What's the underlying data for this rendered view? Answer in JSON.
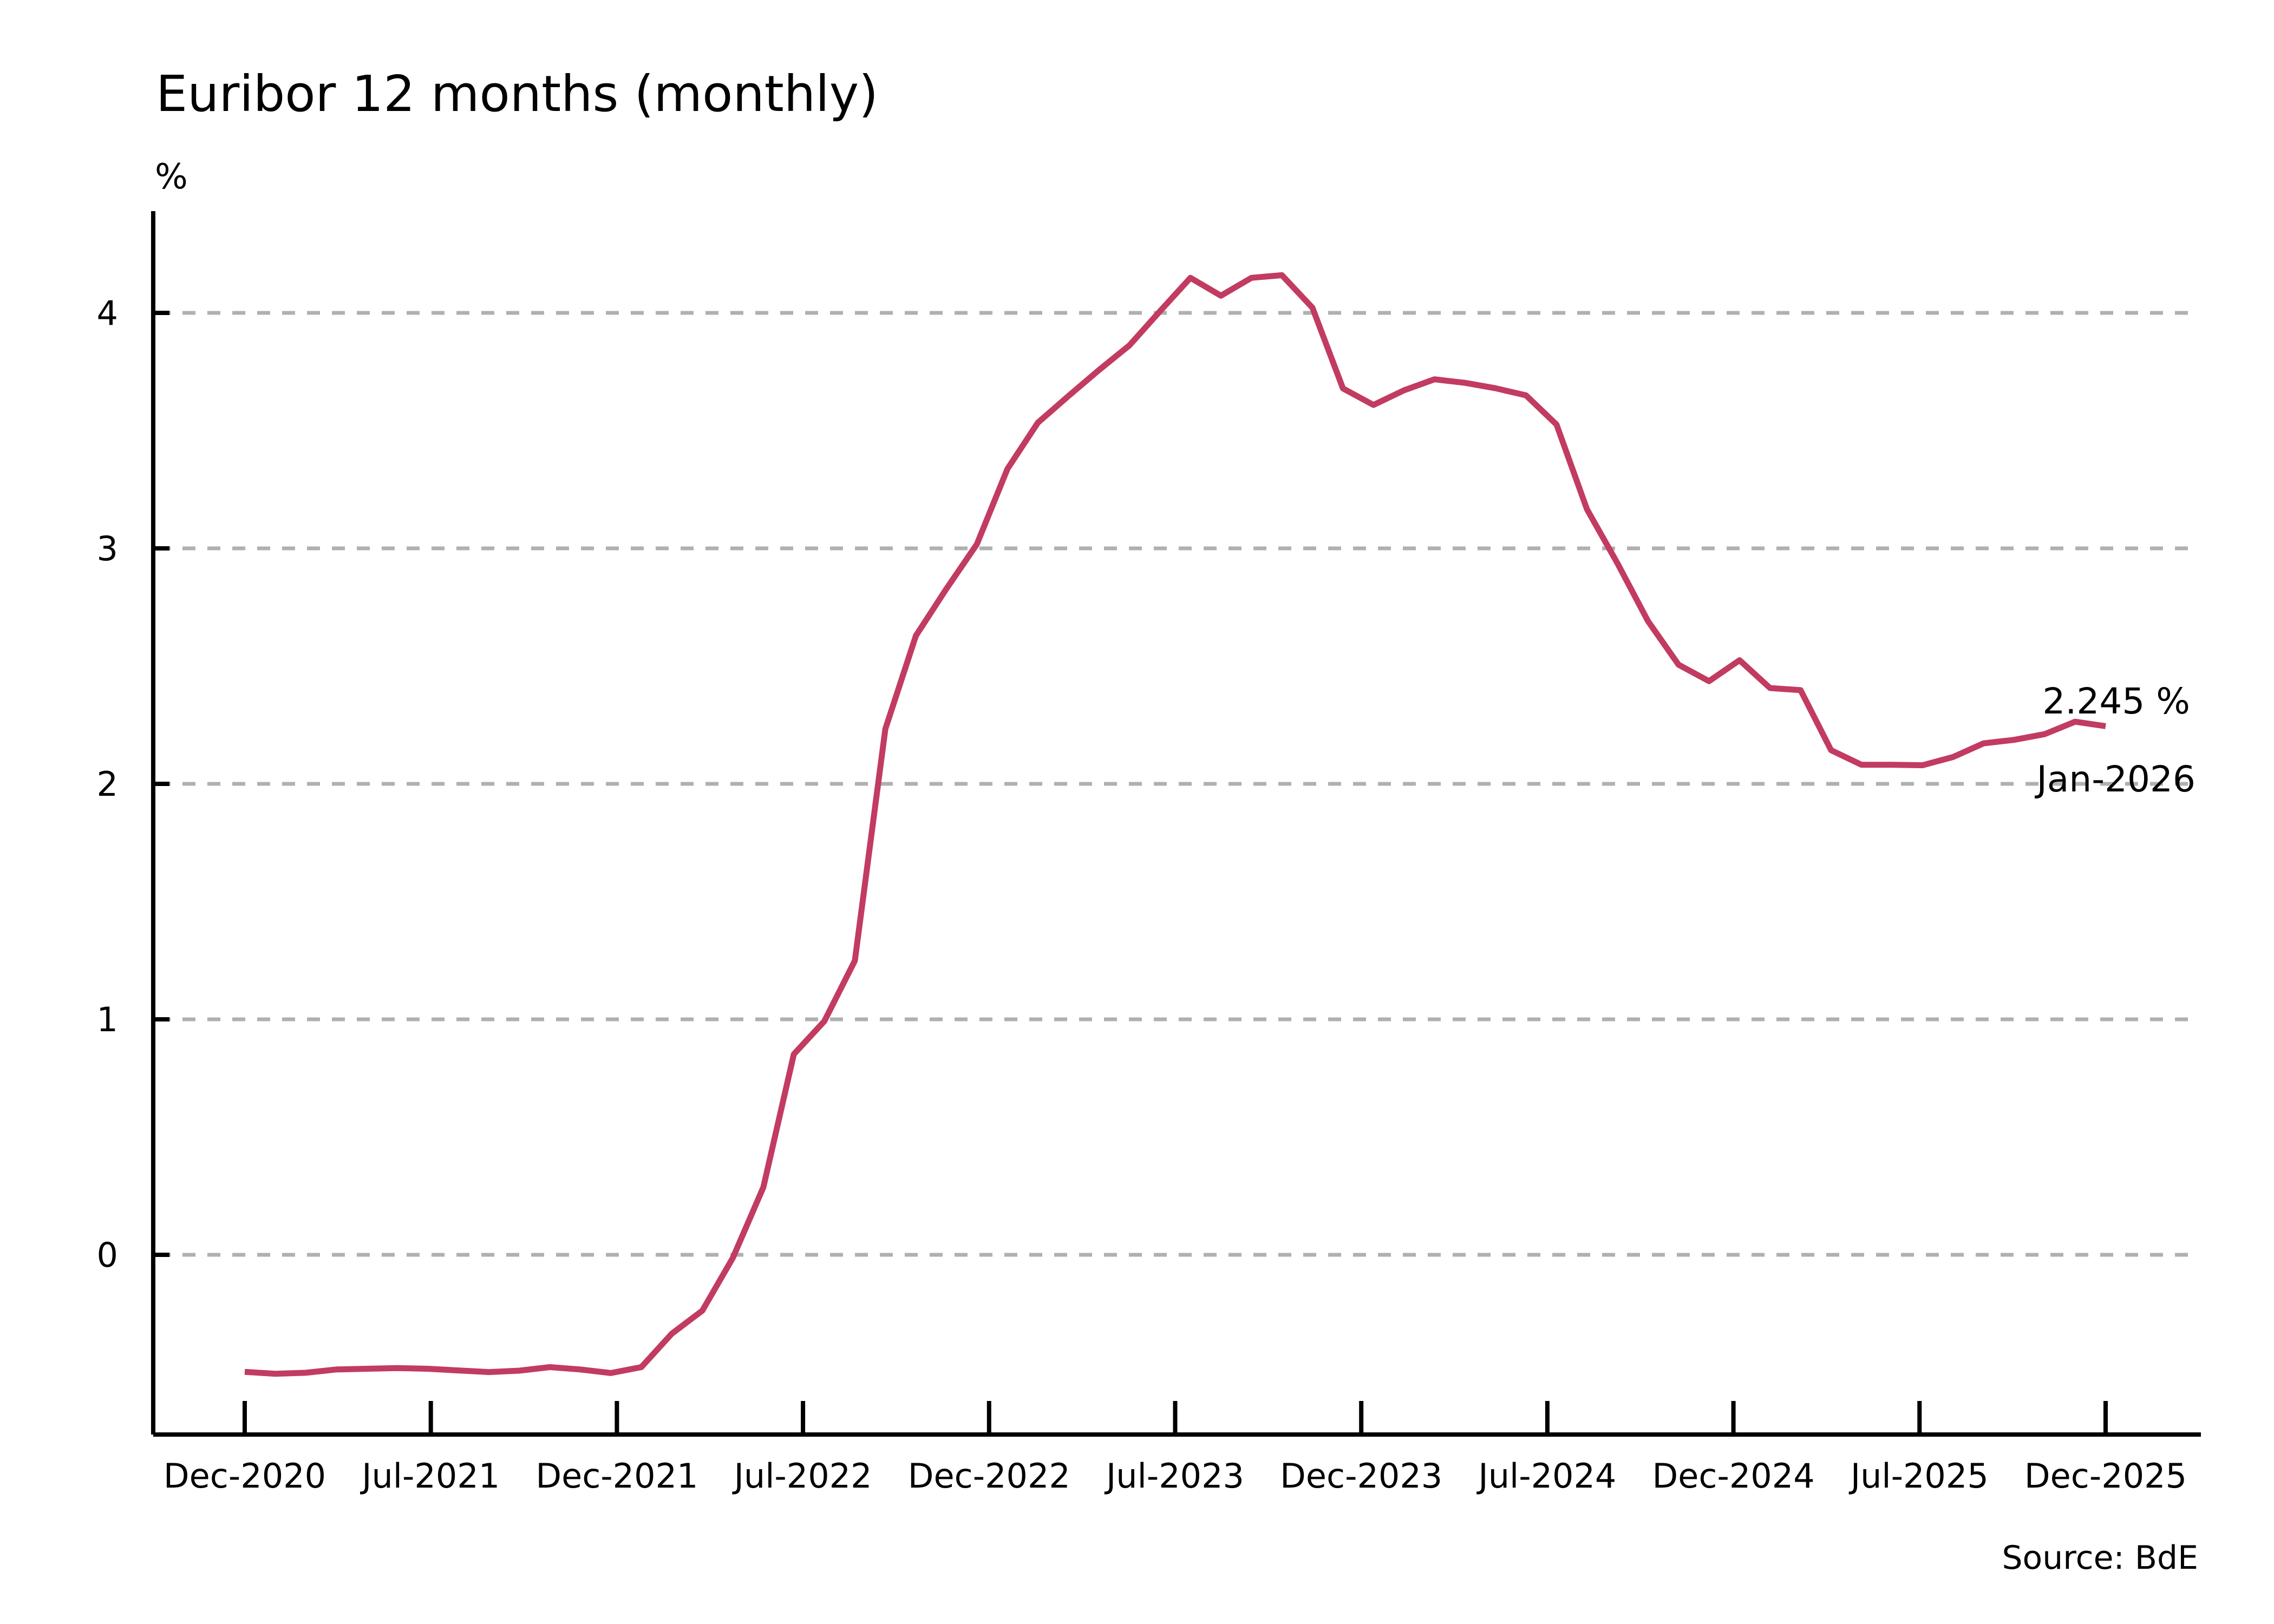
{
  "header": {
    "title": "Euribor 12 months (monthly)"
  },
  "axes": {
    "y_unit": "%"
  },
  "annotation": {
    "value_label": "2.245 %",
    "date_label": "Jan-2026"
  },
  "source_note": "Source: BdE",
  "colors": {
    "line": "#c23b61",
    "grid": "#b0b0b0",
    "axis": "#000000",
    "text": "#000000",
    "background": "#ffffff"
  },
  "chart_data": {
    "type": "line",
    "title": "Euribor 12 months (monthly)",
    "xlabel": "",
    "ylabel": "%",
    "ylim": [
      -0.76,
      4.44
    ],
    "grid": {
      "axis": "y",
      "style": "dashed",
      "color": "#b0b0b0"
    },
    "legend": "none",
    "yticks": [
      0,
      1,
      2,
      3,
      4
    ],
    "ytick_labels": [
      "0",
      "1",
      "2",
      "3",
      "4"
    ],
    "xtick_labels": [
      "Dec-2020",
      "Jul-2021",
      "Dec-2021",
      "Jul-2022",
      "Dec-2022",
      "Jul-2023",
      "Dec-2023",
      "Jul-2024",
      "Dec-2024",
      "Jul-2025",
      "Dec-2025"
    ],
    "x": [
      "Dec-2020",
      "Jan-2021",
      "Feb-2021",
      "Mar-2021",
      "Apr-2021",
      "May-2021",
      "Jun-2021",
      "Jul-2021",
      "Aug-2021",
      "Sep-2021",
      "Oct-2021",
      "Nov-2021",
      "Dec-2021",
      "Jan-2022",
      "Feb-2022",
      "Mar-2022",
      "Apr-2022",
      "May-2022",
      "Jun-2022",
      "Jul-2022",
      "Aug-2022",
      "Sep-2022",
      "Oct-2022",
      "Nov-2022",
      "Dec-2022",
      "Jan-2023",
      "Feb-2023",
      "Mar-2023",
      "Apr-2023",
      "May-2023",
      "Jun-2023",
      "Jul-2023",
      "Aug-2023",
      "Sep-2023",
      "Oct-2023",
      "Nov-2023",
      "Dec-2023",
      "Jan-2024",
      "Feb-2024",
      "Mar-2024",
      "Apr-2024",
      "May-2024",
      "Jun-2024",
      "Jul-2024",
      "Aug-2024",
      "Sep-2024",
      "Oct-2024",
      "Nov-2024",
      "Dec-2024",
      "Jan-2025",
      "Feb-2025",
      "Mar-2025",
      "Apr-2025",
      "May-2025",
      "Jun-2025",
      "Jul-2025",
      "Aug-2025",
      "Sep-2025",
      "Oct-2025",
      "Nov-2025",
      "Dec-2025",
      "Jan-2026"
    ],
    "series": [
      {
        "name": "Euribor 12 months",
        "color": "#c23b61",
        "values": [
          -0.497,
          -0.505,
          -0.501,
          -0.487,
          -0.484,
          -0.481,
          -0.484,
          -0.491,
          -0.498,
          -0.492,
          -0.477,
          -0.487,
          -0.502,
          -0.477,
          -0.335,
          -0.237,
          -0.013,
          0.287,
          0.852,
          0.992,
          1.249,
          2.233,
          2.629,
          2.828,
          3.018,
          3.337,
          3.534,
          3.647,
          3.757,
          3.862,
          4.007,
          4.149,
          4.073,
          4.149,
          4.16,
          4.022,
          3.679,
          3.609,
          3.671,
          3.718,
          3.703,
          3.68,
          3.65,
          3.526,
          3.166,
          2.936,
          2.691,
          2.506,
          2.436,
          2.525,
          2.407,
          2.398,
          2.143,
          2.081,
          2.081,
          2.079,
          2.114,
          2.172,
          2.187,
          2.211,
          2.264,
          2.245
        ]
      }
    ],
    "last_point": {
      "label": "Jan-2026",
      "value": 2.245
    }
  }
}
